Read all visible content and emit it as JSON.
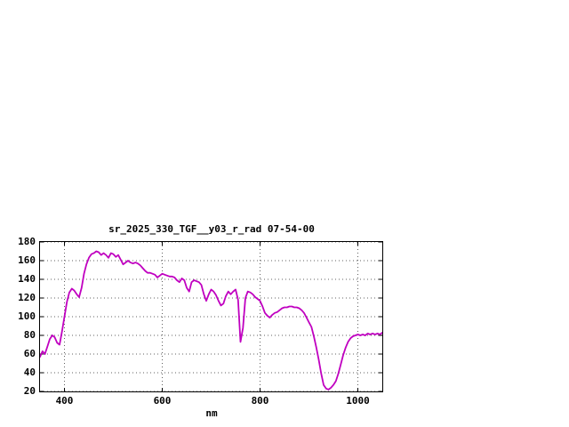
{
  "page": {
    "background": "#ffffff"
  },
  "chart": {
    "line_color": "#c000c0",
    "grid_color": "#606060",
    "axis_color": "#000000",
    "text_color": "#000000"
  },
  "chart_data": {
    "type": "line",
    "title": "sr_2025_330_TGF__y03_r_rad 07-54-00",
    "xlabel": "nm",
    "ylabel": "",
    "xlim": [
      350,
      1050
    ],
    "ylim": [
      20,
      180
    ],
    "x_ticks": [
      400,
      600,
      800,
      1000
    ],
    "y_ticks": [
      20,
      40,
      60,
      80,
      100,
      120,
      140,
      160,
      180
    ],
    "grid": true,
    "legend": "none",
    "series": [
      {
        "color": "#c000c0",
        "x": [
          350,
          355,
          360,
          365,
          370,
          375,
          380,
          385,
          390,
          395,
          400,
          405,
          410,
          415,
          420,
          425,
          430,
          435,
          440,
          445,
          450,
          455,
          460,
          465,
          470,
          475,
          480,
          485,
          490,
          495,
          500,
          505,
          510,
          515,
          520,
          525,
          530,
          535,
          540,
          545,
          550,
          555,
          560,
          565,
          570,
          575,
          580,
          585,
          590,
          595,
          600,
          605,
          610,
          615,
          620,
          625,
          630,
          635,
          640,
          645,
          650,
          655,
          660,
          665,
          670,
          675,
          680,
          685,
          690,
          695,
          700,
          705,
          710,
          715,
          720,
          725,
          730,
          735,
          740,
          745,
          750,
          755,
          760,
          765,
          770,
          775,
          780,
          785,
          790,
          795,
          800,
          805,
          810,
          815,
          820,
          825,
          830,
          835,
          840,
          845,
          850,
          855,
          860,
          865,
          870,
          875,
          880,
          885,
          890,
          895,
          900,
          905,
          910,
          915,
          920,
          925,
          930,
          935,
          940,
          945,
          950,
          955,
          960,
          965,
          970,
          975,
          980,
          985,
          990,
          995,
          1000,
          1005,
          1010,
          1015,
          1020,
          1025,
          1030,
          1035,
          1040,
          1045,
          1050
        ],
        "y": [
          57,
          63,
          60,
          68,
          76,
          80,
          78,
          72,
          70,
          84,
          100,
          116,
          126,
          130,
          128,
          124,
          121,
          131,
          146,
          156,
          163,
          167,
          168,
          170,
          169,
          166,
          168,
          166,
          163,
          168,
          167,
          164,
          166,
          161,
          156,
          158,
          160,
          158,
          157,
          158,
          157,
          155,
          152,
          149,
          147,
          147,
          146,
          145,
          142,
          144,
          146,
          145,
          144,
          143,
          143,
          142,
          139,
          137,
          141,
          139,
          131,
          127,
          137,
          139,
          138,
          137,
          134,
          124,
          117,
          124,
          129,
          127,
          123,
          117,
          112,
          114,
          122,
          127,
          124,
          127,
          129,
          118,
          73,
          88,
          120,
          127,
          126,
          124,
          121,
          119,
          117,
          111,
          104,
          101,
          99,
          102,
          104,
          105,
          107,
          109,
          110,
          110,
          111,
          111,
          110,
          110,
          109,
          107,
          104,
          99,
          94,
          89,
          79,
          67,
          54,
          39,
          27,
          23,
          22,
          24,
          27,
          31,
          39,
          49,
          59,
          67,
          73,
          77,
          79,
          80,
          81,
          80,
          81,
          80,
          82,
          81,
          82,
          81,
          82,
          81,
          83
        ]
      }
    ]
  }
}
